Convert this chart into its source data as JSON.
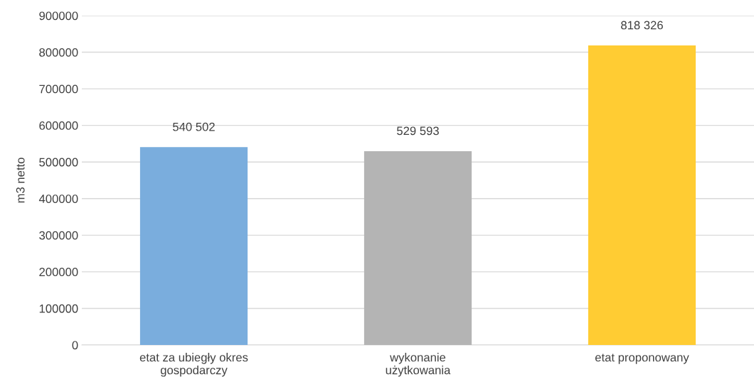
{
  "chart_data": {
    "type": "bar",
    "ylabel": "m3 netto",
    "categories": [
      "etat za ubiegły okres\ngospodarczy",
      "wykonanie\nużytkowania",
      "etat proponowany"
    ],
    "values": [
      540502,
      529593,
      818326
    ],
    "colors": [
      "#7aaddd",
      "#b4b4b4",
      "#ffcc33"
    ],
    "value_labels": [
      "540 502",
      "529 593",
      "818 326"
    ],
    "ylim": [
      0,
      900000
    ],
    "yticks": [
      0,
      100000,
      200000,
      300000,
      400000,
      500000,
      600000,
      700000,
      800000,
      900000
    ],
    "grid": "y",
    "legend": false
  }
}
